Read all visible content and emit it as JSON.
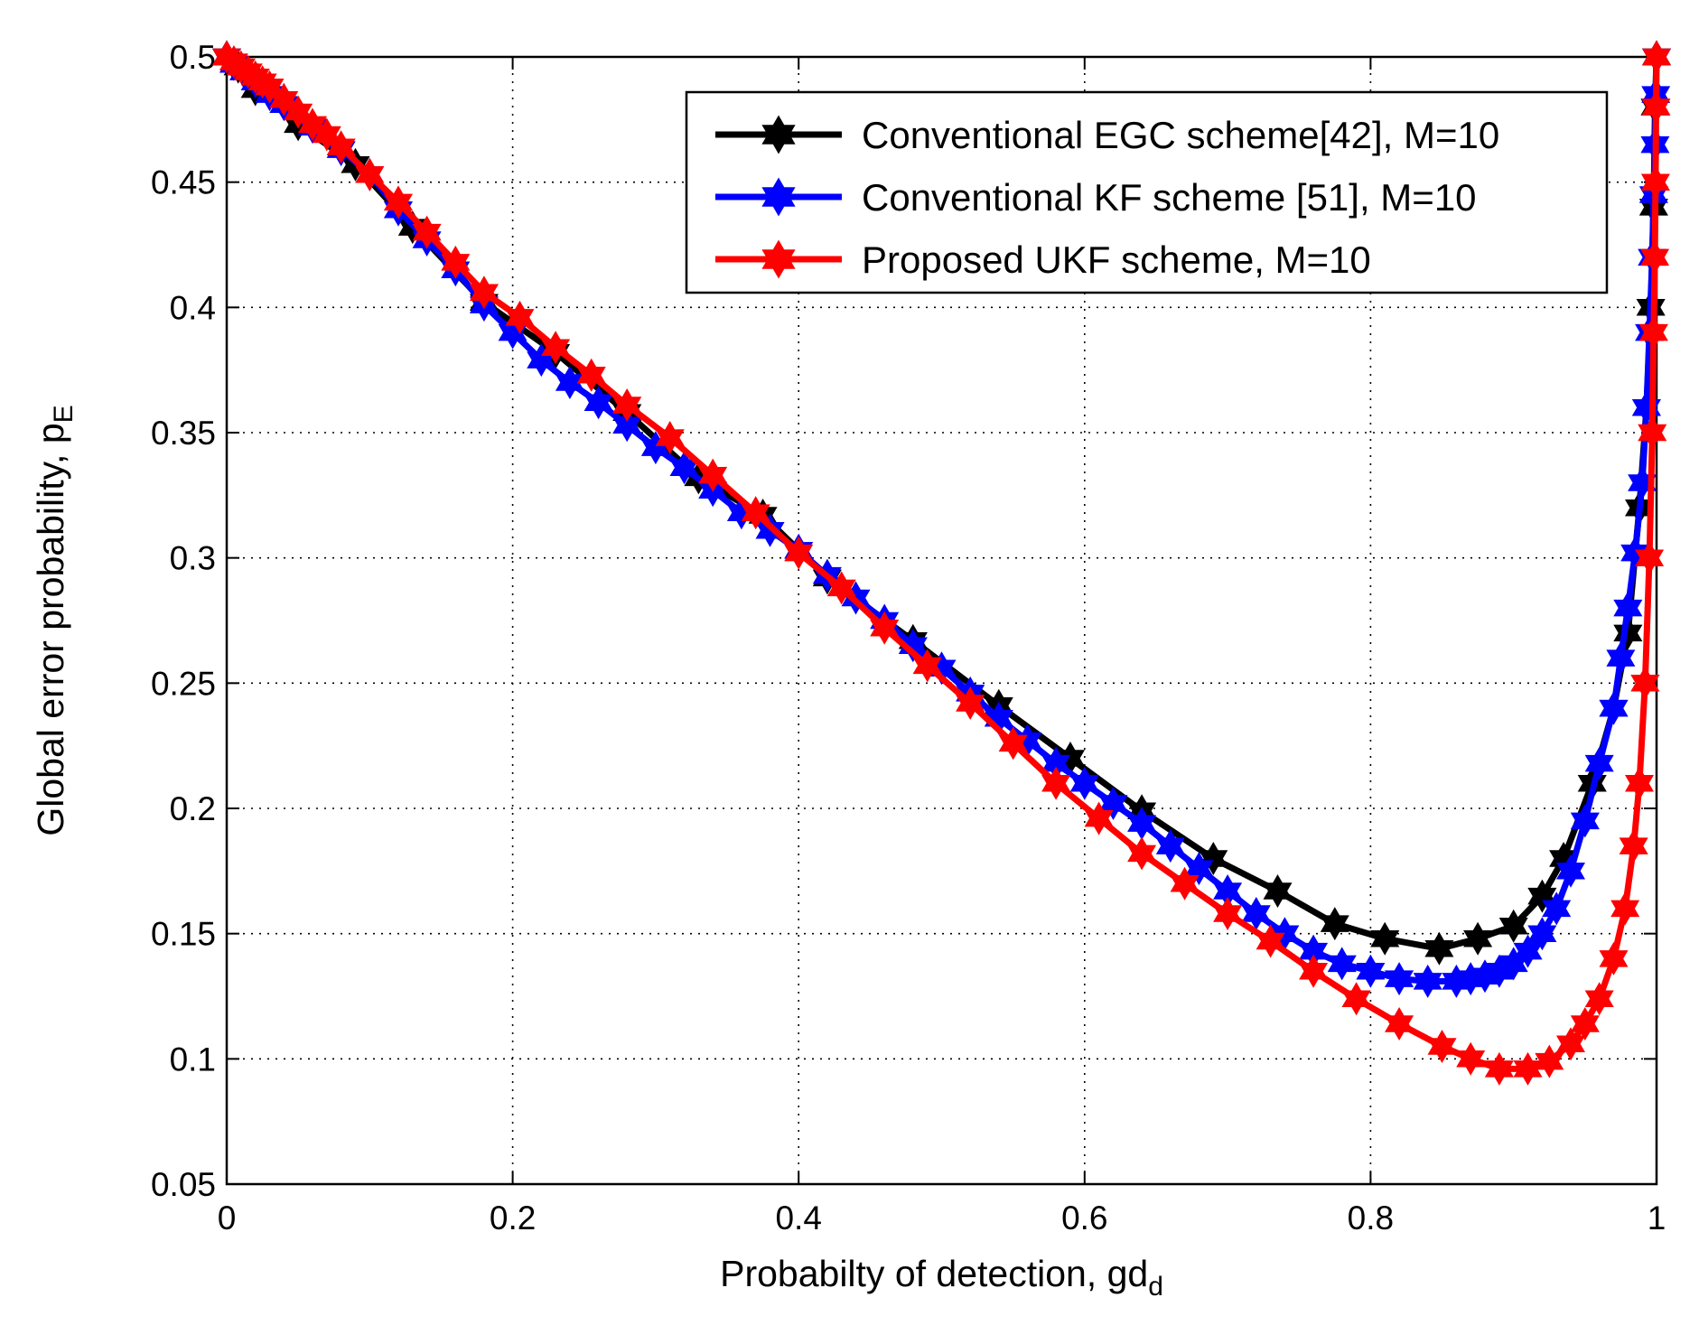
{
  "chart_data": {
    "type": "line",
    "title": "",
    "xlabel": "Probabilty of detection, gd",
    "xlabel_sub": "d",
    "ylabel": "Global error probability, p",
    "ylabel_sub": "E",
    "xlim": [
      0,
      1
    ],
    "ylim": [
      0.05,
      0.5
    ],
    "x_ticks": [
      0,
      0.2,
      0.4,
      0.6,
      0.8,
      1
    ],
    "x_tick_labels": [
      "0",
      "0.2",
      "0.4",
      "0.6",
      "0.8",
      "1"
    ],
    "y_ticks": [
      0.05,
      0.1,
      0.15,
      0.2,
      0.25,
      0.3,
      0.35,
      0.4,
      0.45,
      0.5
    ],
    "y_tick_labels": [
      "0.05",
      "0.1",
      "0.15",
      "0.2",
      "0.25",
      "0.3",
      "0.35",
      "0.4",
      "0.45",
      "0.5"
    ],
    "grid": true,
    "legend_position": "top-right",
    "marker": "hexagram-star",
    "series": [
      {
        "name": "Conventional EGC scheme[42], M=10",
        "color": "#000000",
        "x": [
          0,
          0.008,
          0.02,
          0.05,
          0.09,
          0.13,
          0.18,
          0.23,
          0.28,
          0.33,
          0.375,
          0.42,
          0.48,
          0.54,
          0.59,
          0.64,
          0.69,
          0.735,
          0.775,
          0.81,
          0.848,
          0.875,
          0.9,
          0.92,
          0.935,
          0.955,
          0.97,
          0.98,
          0.988,
          0.993,
          0.996,
          0.998,
          0.999,
          1.0
        ],
        "y": [
          0.5,
          0.496,
          0.487,
          0.473,
          0.457,
          0.432,
          0.402,
          0.382,
          0.358,
          0.332,
          0.317,
          0.292,
          0.267,
          0.241,
          0.22,
          0.199,
          0.18,
          0.167,
          0.154,
          0.148,
          0.144,
          0.148,
          0.153,
          0.165,
          0.18,
          0.21,
          0.24,
          0.27,
          0.32,
          0.36,
          0.4,
          0.44,
          0.48,
          0.5
        ]
      },
      {
        "name": "Conventional KF scheme [51], M=10",
        "color": "#0000ff",
        "x": [
          0,
          0.005,
          0.012,
          0.02,
          0.03,
          0.04,
          0.06,
          0.08,
          0.1,
          0.12,
          0.14,
          0.16,
          0.18,
          0.2,
          0.22,
          0.24,
          0.26,
          0.28,
          0.3,
          0.32,
          0.34,
          0.36,
          0.38,
          0.4,
          0.42,
          0.44,
          0.46,
          0.48,
          0.5,
          0.52,
          0.54,
          0.56,
          0.58,
          0.6,
          0.62,
          0.64,
          0.66,
          0.68,
          0.7,
          0.72,
          0.74,
          0.76,
          0.78,
          0.8,
          0.82,
          0.84,
          0.86,
          0.87,
          0.88,
          0.89,
          0.9,
          0.91,
          0.92,
          0.93,
          0.94,
          0.95,
          0.96,
          0.97,
          0.975,
          0.98,
          0.985,
          0.99,
          0.993,
          0.995,
          0.997,
          0.998,
          0.999,
          0.9995,
          1.0
        ],
        "y": [
          0.5,
          0.497,
          0.494,
          0.49,
          0.485,
          0.481,
          0.472,
          0.463,
          0.453,
          0.439,
          0.427,
          0.415,
          0.401,
          0.39,
          0.379,
          0.37,
          0.362,
          0.353,
          0.344,
          0.336,
          0.327,
          0.318,
          0.311,
          0.303,
          0.293,
          0.284,
          0.275,
          0.265,
          0.256,
          0.246,
          0.236,
          0.227,
          0.218,
          0.21,
          0.202,
          0.194,
          0.185,
          0.176,
          0.167,
          0.158,
          0.15,
          0.143,
          0.138,
          0.135,
          0.132,
          0.131,
          0.131,
          0.132,
          0.133,
          0.135,
          0.138,
          0.143,
          0.15,
          0.16,
          0.175,
          0.195,
          0.218,
          0.24,
          0.26,
          0.28,
          0.302,
          0.33,
          0.36,
          0.39,
          0.42,
          0.445,
          0.465,
          0.485,
          0.5
        ]
      },
      {
        "name": "Proposed UKF scheme, M=10",
        "color": "#ff0000",
        "x": [
          0,
          0.005,
          0.01,
          0.015,
          0.02,
          0.025,
          0.03,
          0.04,
          0.05,
          0.06,
          0.07,
          0.08,
          0.1,
          0.12,
          0.14,
          0.16,
          0.18,
          0.205,
          0.23,
          0.255,
          0.28,
          0.31,
          0.34,
          0.37,
          0.4,
          0.43,
          0.46,
          0.49,
          0.52,
          0.55,
          0.58,
          0.61,
          0.64,
          0.67,
          0.7,
          0.73,
          0.76,
          0.79,
          0.82,
          0.85,
          0.87,
          0.89,
          0.91,
          0.925,
          0.94,
          0.95,
          0.96,
          0.97,
          0.978,
          0.984,
          0.988,
          0.992,
          0.995,
          0.997,
          0.998,
          0.9988,
          0.9993,
          0.9997,
          1.0
        ],
        "y": [
          0.5,
          0.498,
          0.496,
          0.494,
          0.492,
          0.49,
          0.488,
          0.483,
          0.478,
          0.473,
          0.469,
          0.464,
          0.453,
          0.442,
          0.43,
          0.418,
          0.406,
          0.396,
          0.384,
          0.373,
          0.361,
          0.348,
          0.333,
          0.318,
          0.302,
          0.288,
          0.272,
          0.257,
          0.242,
          0.226,
          0.21,
          0.196,
          0.182,
          0.17,
          0.158,
          0.147,
          0.135,
          0.124,
          0.114,
          0.105,
          0.1,
          0.096,
          0.096,
          0.099,
          0.106,
          0.114,
          0.124,
          0.14,
          0.16,
          0.185,
          0.21,
          0.25,
          0.3,
          0.35,
          0.39,
          0.42,
          0.45,
          0.48,
          0.5
        ]
      }
    ]
  }
}
